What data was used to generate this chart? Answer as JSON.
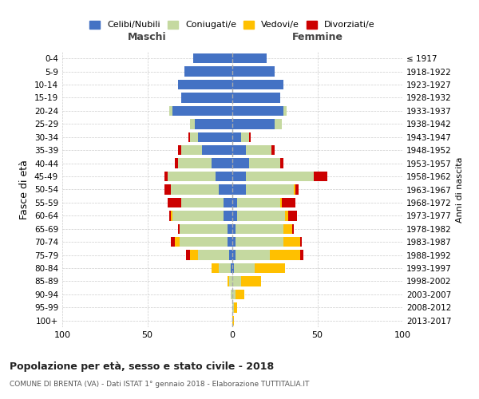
{
  "age_groups": [
    "0-4",
    "5-9",
    "10-14",
    "15-19",
    "20-24",
    "25-29",
    "30-34",
    "35-39",
    "40-44",
    "45-49",
    "50-54",
    "55-59",
    "60-64",
    "65-69",
    "70-74",
    "75-79",
    "80-84",
    "85-89",
    "90-94",
    "95-99",
    "100+"
  ],
  "birth_years": [
    "2013-2017",
    "2008-2012",
    "2003-2007",
    "1998-2002",
    "1993-1997",
    "1988-1992",
    "1983-1987",
    "1978-1982",
    "1973-1977",
    "1968-1972",
    "1963-1967",
    "1958-1962",
    "1953-1957",
    "1948-1952",
    "1943-1947",
    "1938-1942",
    "1933-1937",
    "1928-1932",
    "1923-1927",
    "1918-1922",
    "≤ 1917"
  ],
  "colors": {
    "celibi": "#4472c4",
    "coniugati": "#c5d9a0",
    "vedovi": "#ffc000",
    "divorziati": "#cc0000"
  },
  "maschi": {
    "celibi": [
      23,
      28,
      32,
      30,
      35,
      22,
      20,
      18,
      12,
      10,
      8,
      5,
      5,
      3,
      3,
      2,
      1,
      0,
      0,
      0,
      0
    ],
    "coniugati": [
      0,
      0,
      0,
      0,
      2,
      3,
      5,
      12,
      20,
      28,
      28,
      25,
      30,
      28,
      28,
      18,
      7,
      2,
      1,
      0,
      0
    ],
    "vedovi": [
      0,
      0,
      0,
      0,
      0,
      0,
      0,
      0,
      0,
      0,
      0,
      0,
      1,
      0,
      3,
      5,
      4,
      1,
      0,
      0,
      0
    ],
    "divorziati": [
      0,
      0,
      0,
      0,
      0,
      0,
      1,
      2,
      2,
      2,
      4,
      8,
      1,
      1,
      2,
      2,
      0,
      0,
      0,
      0,
      0
    ]
  },
  "femmine": {
    "celibi": [
      20,
      25,
      30,
      28,
      30,
      25,
      5,
      8,
      10,
      8,
      8,
      3,
      3,
      2,
      2,
      2,
      1,
      0,
      0,
      0,
      0
    ],
    "coniugati": [
      0,
      0,
      0,
      0,
      2,
      4,
      5,
      15,
      18,
      40,
      28,
      25,
      28,
      28,
      28,
      20,
      12,
      5,
      2,
      1,
      0
    ],
    "vedovi": [
      0,
      0,
      0,
      0,
      0,
      0,
      0,
      0,
      0,
      0,
      1,
      1,
      2,
      5,
      10,
      18,
      18,
      12,
      5,
      2,
      1
    ],
    "divorziati": [
      0,
      0,
      0,
      0,
      0,
      0,
      1,
      2,
      2,
      8,
      2,
      8,
      5,
      1,
      1,
      2,
      0,
      0,
      0,
      0,
      0
    ]
  },
  "xlim": [
    -100,
    100
  ],
  "xticks": [
    -100,
    -50,
    0,
    50,
    100
  ],
  "xticklabels": [
    "100",
    "50",
    "0",
    "50",
    "100"
  ],
  "title": "Popolazione per età, sesso e stato civile - 2018",
  "subtitle": "COMUNE DI BRENTA (VA) - Dati ISTAT 1° gennaio 2018 - Elaborazione TUTTITALIA.IT",
  "ylabel_left": "Fasce di età",
  "ylabel_right": "Anni di nascita",
  "label_maschi": "Maschi",
  "label_femmine": "Femmine",
  "legend_labels": [
    "Celibi/Nubili",
    "Coniugati/e",
    "Vedovi/e",
    "Divorziati/e"
  ],
  "background_color": "#ffffff",
  "grid_color": "#cccccc"
}
